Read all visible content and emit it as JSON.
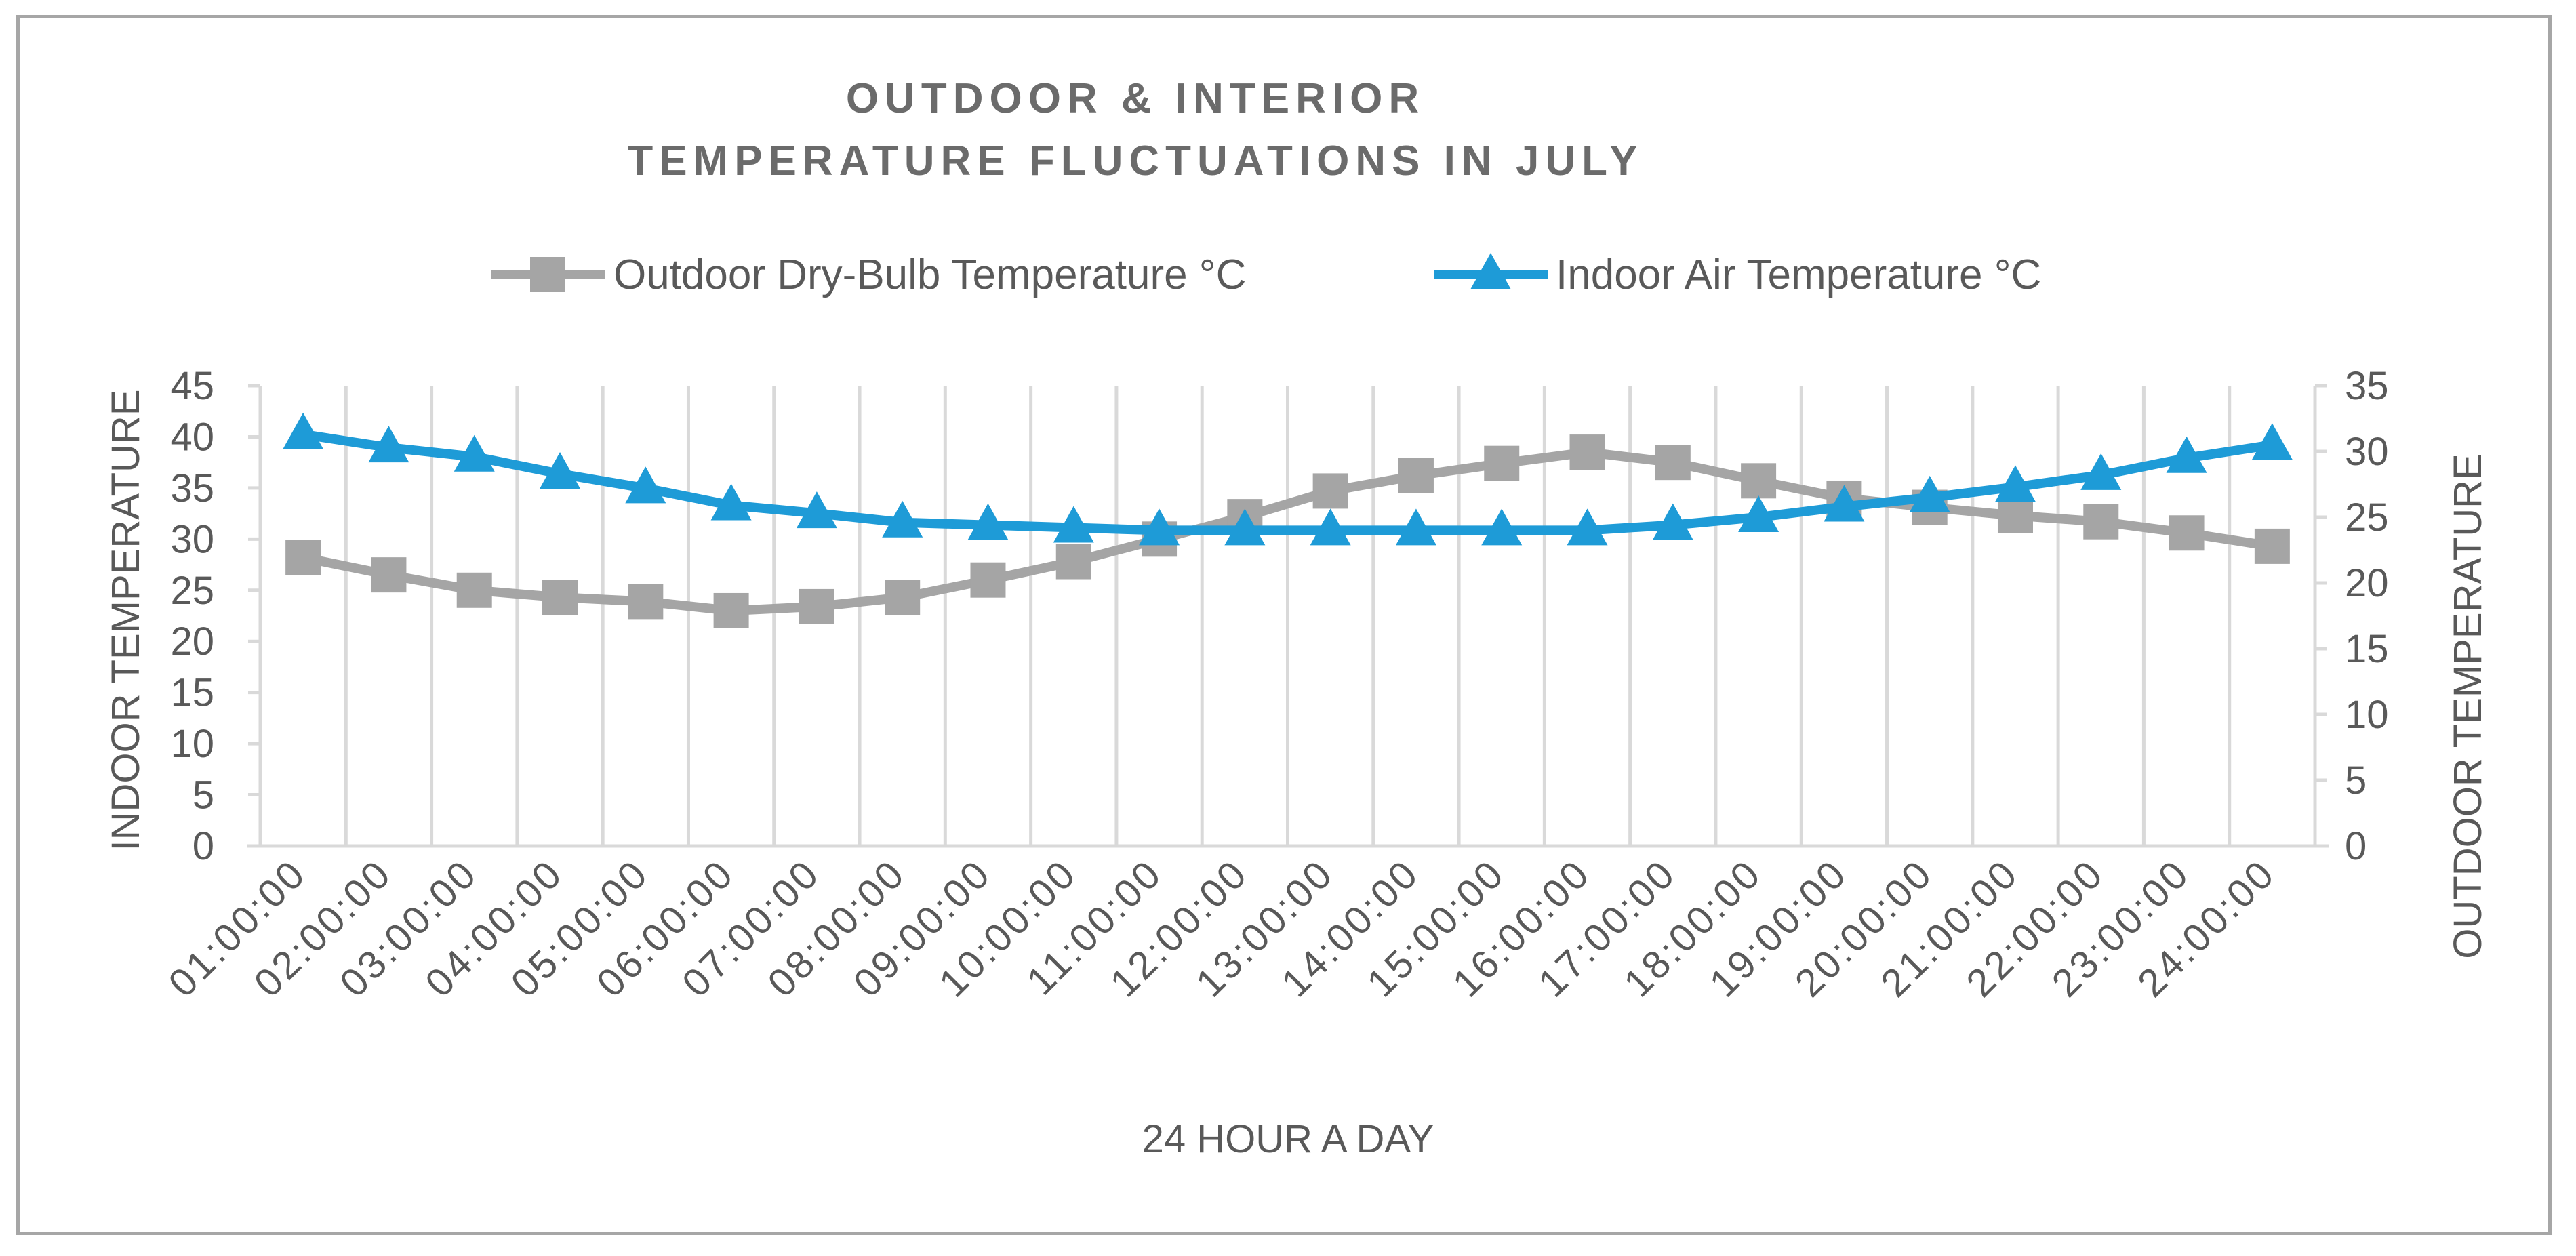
{
  "chart_data": {
    "type": "line",
    "title_lines": [
      "OUTDOOR & INTERIOR",
      "TEMPERATURE FLUCTUATIONS IN JULY"
    ],
    "xlabel": "24 HOUR A DAY",
    "ylabel_left": "INDOOR TEMPERATURE",
    "ylabel_right": "OUTDOOR TEMPERATURE",
    "categories": [
      "01:00:00",
      "02:00:00",
      "03:00:00",
      "04:00:00",
      "05:00:00",
      "06:00:00",
      "07:00:00",
      "08:00:00",
      "09:00:00",
      "10:00:00",
      "11:00:00",
      "12:00:00",
      "13:00:00",
      "14:00:00",
      "15:00:00",
      "16:00:00",
      "17:00:00",
      "18:00:00",
      "19:00:00",
      "20:00:00",
      "21:00:00",
      "22:00:00",
      "23:00:00",
      "24:00:00"
    ],
    "ylim_left": [
      0,
      45
    ],
    "yticks_left": [
      0,
      5,
      10,
      15,
      20,
      25,
      30,
      35,
      40,
      45
    ],
    "ylim_right": [
      0,
      35
    ],
    "yticks_right": [
      0,
      5,
      10,
      15,
      20,
      25,
      30,
      35
    ],
    "grid": "vertical",
    "legend_position": "top",
    "series": [
      {
        "name": "Outdoor Dry-Bulb Temperature °C",
        "axis": "left",
        "marker": "square",
        "color": "#a5a5a5",
        "values": [
          28.2,
          26.5,
          25.0,
          24.3,
          23.9,
          23.0,
          23.4,
          24.3,
          26.0,
          27.8,
          30.0,
          32.2,
          34.7,
          36.2,
          37.4,
          38.5,
          37.5,
          35.7,
          34.0,
          33.1,
          32.3,
          31.7,
          30.6,
          29.3
        ]
      },
      {
        "name": "Indoor Air Temperature °C",
        "axis": "right",
        "marker": "triangle",
        "color": "#1e9bd7",
        "values": [
          31.3,
          30.3,
          29.6,
          28.3,
          27.2,
          25.9,
          25.3,
          24.6,
          24.4,
          24.2,
          24.0,
          24.0,
          24.0,
          24.0,
          24.0,
          24.0,
          24.4,
          25.0,
          25.8,
          26.5,
          27.3,
          28.2,
          29.5,
          30.5
        ]
      }
    ]
  }
}
